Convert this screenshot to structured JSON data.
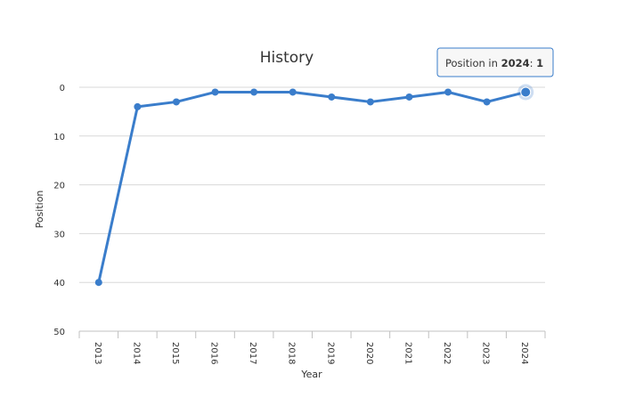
{
  "chart_data": {
    "type": "line",
    "title": "History",
    "xlabel": "Year",
    "ylabel": "Position",
    "y_reversed": true,
    "ylim": [
      0,
      50
    ],
    "yticks": [
      "0",
      "10",
      "20",
      "30",
      "40",
      "50"
    ],
    "categories": [
      "2013",
      "2014",
      "2015",
      "2016",
      "2017",
      "2018",
      "2019",
      "2020",
      "2021",
      "2022",
      "2023",
      "2024"
    ],
    "values": [
      40,
      4,
      3,
      1,
      1,
      1,
      2,
      3,
      2,
      1,
      3,
      1
    ],
    "grid": true,
    "series_color": "#3a7dcb",
    "highlighted_category": "2024",
    "tooltip": {
      "prefix": "Position in ",
      "year": "2024",
      "separator": ": ",
      "value": "1"
    }
  }
}
